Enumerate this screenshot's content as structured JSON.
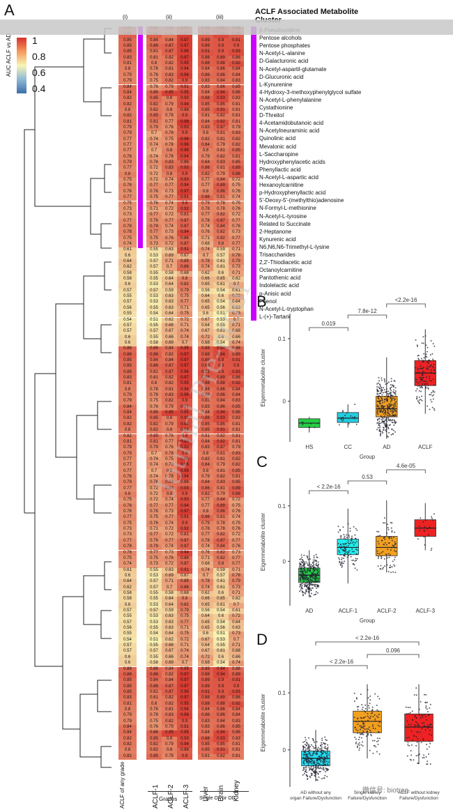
{
  "figure": {
    "panel_labels": [
      "A",
      "B",
      "C",
      "D"
    ],
    "heatmap": {
      "column_groups": [
        "(i)",
        "(ii)",
        "(iii)"
      ],
      "columns": [
        "ACLF of any grade",
        "ACLF-1",
        "ACLF-2",
        "ACLF-3",
        "Liver",
        "Brain",
        "Kidney"
      ],
      "group_labels": [
        "Grades",
        "Single OF or OD"
      ],
      "legend": {
        "title": "AUC ACLF vs AD",
        "ticks": [
          "1",
          "0.8",
          "0.6",
          "0.4"
        ],
        "colors": [
          "#d7302a",
          "#f8f5b5",
          "#3b6ea8"
        ]
      },
      "cluster_title": "ACLF Associated Metabolite Cluster",
      "cluster_color": "#cc00ff",
      "metabolites": [
        "β-Pseudouridine",
        "Pentose alcohols",
        "Pentose phosphates",
        "N-Acetyl-L-alanine",
        "D-Galacturonic acid",
        "N-Acetyl-aspartil-glutamate",
        "D-Glucuronic acid",
        "L-Kynurenine",
        "4-Hydroxy-3-methoxyphenylglycol sulfate",
        "N-Acetyl-L-phenylalanine",
        "Cystathionine",
        "D-Threitol",
        "4-Acetamidobutanoic acid",
        "N-Acetylneuraminic acid",
        "Quinolinic acid",
        "Mevalonic acid",
        "L-Saccharopine",
        "Hydroxyphenylacetic acids",
        "Phenyllactic acid",
        "N-Acetyl-L-aspartic acid",
        "Hexanoylcarnitine",
        "p-Hydroxyphenyllactic acid",
        "5'-Deoxy-5'-(methylthio)adenosine",
        "N-Formyl-L-methionine",
        "N-Acetyl-L-tyrosine",
        "Related to Succinate",
        "2-Heptanone",
        "Kynurenic acid",
        "N6,N6,N6-Trimethyl-L-lysine",
        "Trisaccharides",
        "2,2'-Thiodiacetic acid",
        "Octanoylcarnitine",
        "Pantothenic acid",
        "Indolelactic acid",
        "p-Anisic acid",
        "Phenol",
        "N-Acetyl-L-tryptophan",
        "L-(+)-Tartaric acid"
      ],
      "rows": [
        [
          0.86,
          0.86,
          0.84,
          0.95,
          0.89,
          0.94,
          0.86
        ],
        [
          0.88,
          0.88,
          0.82,
          0.97,
          0.88,
          0.94,
          0.89
        ],
        [
          0.85,
          0.84,
          0.84,
          0.97,
          0.89,
          0.9,
          0.91
        ],
        [
          0.85,
          0.86,
          0.87,
          0.97,
          0.89,
          0.9,
          0.9
        ],
        [
          0.85,
          0.81,
          0.87,
          0.96,
          0.91,
          0.9,
          0.93
        ],
        [
          0.83,
          0.81,
          0.82,
          0.97,
          0.88,
          0.89,
          0.86
        ],
        [
          0.81,
          0.8,
          0.82,
          0.95,
          0.88,
          0.88,
          0.92
        ],
        [
          0.8,
          0.78,
          0.81,
          0.94,
          0.84,
          0.86,
          0.84
        ],
        [
          0.79,
          0.78,
          0.83,
          0.96,
          0.86,
          0.86,
          0.84
        ],
        [
          0.79,
          0.75,
          0.82,
          0.9,
          0.83,
          0.84,
          0.83
        ],
        [
          0.84,
          0.76,
          0.79,
          0.91,
          0.83,
          0.86,
          0.85
        ],
        [
          0.84,
          0.86,
          0.95,
          0.95,
          0.84,
          0.94,
          0.86
        ],
        [
          0.82,
          0.85,
          0.8,
          0.93,
          0.88,
          0.93,
          0.83
        ],
        [
          0.82,
          0.82,
          0.79,
          0.94,
          0.85,
          0.85,
          0.81
        ],
        [
          0.8,
          0.82,
          0.8,
          0.88,
          0.85,
          0.91,
          0.81
        ],
        [
          0.82,
          0.85,
          0.78,
          0.9,
          0.81,
          0.82,
          0.81
        ],
        [
          0.81,
          0.81,
          0.77,
          0.98,
          0.84,
          0.92,
          0.81
        ],
        [
          0.79,
          0.79,
          0.76,
          0.93,
          0.83,
          0.87,
          0.79
        ],
        [
          0.79,
          0.7,
          0.78,
          0.9,
          0.8,
          0.81,
          0.83
        ],
        [
          0.77,
          0.74,
          0.75,
          0.96,
          0.82,
          0.81,
          0.82
        ],
        [
          0.77,
          0.74,
          0.78,
          0.96,
          0.84,
          0.79,
          0.82
        ],
        [
          0.77,
          0.7,
          0.8,
          0.96,
          0.8,
          0.81,
          0.85
        ],
        [
          0.78,
          0.74,
          0.78,
          0.94,
          0.79,
          0.82,
          0.81
        ],
        [
          0.79,
          0.76,
          0.83,
          0.86,
          0.84,
          0.83,
          0.85
        ],
        [
          0.77,
          0.72,
          0.83,
          0.93,
          0.86,
          0.81,
          0.89
        ],
        [
          0.8,
          0.72,
          0.8,
          0.9,
          0.82,
          0.79,
          0.88
        ],
        [
          0.75,
          0.72,
          0.74,
          0.93,
          0.77,
          0.84,
          0.72
        ],
        [
          0.78,
          0.77,
          0.77,
          0.94,
          0.77,
          0.89,
          0.75
        ],
        [
          0.76,
          0.76,
          0.73,
          0.97,
          0.8,
          0.86,
          0.76
        ],
        [
          0.77,
          0.75,
          0.77,
          0.91,
          0.86,
          0.81,
          0.74
        ],
        [
          0.75,
          0.76,
          0.74,
          0.9,
          0.79,
          0.78,
          0.75
        ],
        [
          0.73,
          0.71,
          0.72,
          0.92,
          0.78,
          0.78,
          0.76
        ],
        [
          0.73,
          0.77,
          0.72,
          0.81,
          0.77,
          0.82,
          0.72
        ],
        [
          0.77,
          0.76,
          0.77,
          0.87,
          0.78,
          0.87,
          0.77
        ],
        [
          0.78,
          0.79,
          0.74,
          0.87,
          0.74,
          0.84,
          0.76
        ],
        [
          0.78,
          0.77,
          0.73,
          0.94,
          0.76,
          0.82,
          0.73
        ],
        [
          0.75,
          0.75,
          0.76,
          0.86,
          0.71,
          0.82,
          0.77
        ],
        [
          0.74,
          0.73,
          0.72,
          0.87,
          0.68,
          0.8,
          0.77
        ]
      ],
      "lower_rows": [
        [
          0.61,
          0.55,
          0.63,
          0.91,
          0.74,
          0.59,
          0.71
        ],
        [
          0.6,
          0.53,
          0.69,
          0.67,
          0.7,
          0.57,
          0.78
        ],
        [
          0.64,
          0.57,
          0.71,
          0.85,
          0.78,
          0.61,
          0.79
        ],
        [
          0.62,
          0.57,
          0.7,
          0.86,
          0.74,
          0.61,
          0.73
        ],
        [
          0.58,
          0.55,
          0.58,
          0.68,
          0.62,
          0.6,
          0.71
        ],
        [
          0.58,
          0.55,
          0.64,
          0.8,
          0.66,
          0.65,
          0.62
        ],
        [
          0.6,
          0.53,
          0.64,
          0.82,
          0.65,
          0.61,
          0.7
        ],
        [
          0.57,
          0.57,
          0.59,
          0.79,
          0.56,
          0.54,
          0.61
        ],
        [
          0.55,
          0.53,
          0.63,
          0.75,
          0.64,
          0.6,
          0.72
        ],
        [
          0.57,
          0.53,
          0.63,
          0.77,
          0.65,
          0.54,
          0.64
        ],
        [
          0.56,
          0.55,
          0.63,
          0.71,
          0.65,
          0.56,
          0.63
        ],
        [
          0.55,
          0.54,
          0.64,
          0.75,
          0.6,
          0.51,
          0.73
        ],
        [
          0.54,
          0.51,
          0.62,
          0.72,
          0.67,
          0.53,
          0.7
        ],
        [
          0.57,
          0.55,
          0.68,
          0.71,
          0.64,
          0.55,
          0.71
        ],
        [
          0.57,
          0.57,
          0.67,
          0.74,
          0.67,
          0.61,
          0.68
        ],
        [
          0.6,
          0.55,
          0.66,
          0.74,
          0.72,
          0.6,
          0.66
        ],
        [
          0.6,
          0.58,
          0.69,
          0.7,
          0.68,
          0.54,
          0.74
        ]
      ]
    },
    "panel_b": {
      "chart_data": {
        "type": "box",
        "categories": [
          "HS",
          "CC",
          "AD",
          "ACLF"
        ],
        "medians": [
          -0.035,
          -0.027,
          -0.012,
          0.045
        ],
        "q1": [
          -0.042,
          -0.034,
          -0.025,
          0.025
        ],
        "q3": [
          -0.028,
          -0.018,
          0.008,
          0.065
        ],
        "whisker_low": [
          -0.05,
          -0.042,
          -0.06,
          -0.02
        ],
        "whisker_high": [
          -0.025,
          -0.005,
          0.07,
          0.115
        ],
        "colors": [
          "#22cc44",
          "#22ccdd",
          "#f2a020",
          "#ee2222"
        ],
        "ylabel": "Eigenmetabolite cluster",
        "xlabel": "Group",
        "yticks": [
          "0.1",
          "0"
        ],
        "ylim": [
          -0.065,
          0.14
        ],
        "pvalues": [
          {
            "label": "0.019"
          },
          {
            "label": "7.8e-12"
          },
          {
            "label": "<2.2e-16"
          }
        ]
      }
    },
    "panel_c": {
      "chart_data": {
        "type": "box",
        "categories": [
          "AD",
          "ACLF-1",
          "ACLF-2",
          "ACLF-3"
        ],
        "medians": [
          -0.025,
          0.025,
          0.025,
          0.06
        ],
        "q1": [
          -0.038,
          0.012,
          0.01,
          0.045
        ],
        "q3": [
          -0.012,
          0.04,
          0.045,
          0.075
        ],
        "whisker_low": [
          -0.065,
          -0.04,
          -0.02,
          0.02
        ],
        "whisker_high": [
          0.02,
          0.095,
          0.11,
          0.105
        ],
        "colors": [
          "#22cc44",
          "#22eeee",
          "#f2a020",
          "#ee2222"
        ],
        "ylabel": "Eigenmetabolite cluster",
        "xlabel": "Group",
        "yticks": [
          "0.1",
          "0"
        ],
        "ylim": [
          -0.08,
          0.15
        ],
        "pvalues": [
          {
            "label": "< 2.2e-16"
          },
          {
            "label": "0.53"
          },
          {
            "label": "4.6e-05"
          }
        ]
      }
    },
    "panel_d": {
      "chart_data": {
        "type": "box",
        "categories": [
          "AD without any organ Failure/Dysfunction",
          "Single kidney Failure/Dysfunction",
          "ACLF without kidney Failure/Dysfunction"
        ],
        "cat_lines": [
          [
            "AD without any",
            "organ Failure/Dysfunction"
          ],
          [
            "Single kidney",
            "Failure/Dysfunction"
          ],
          [
            "ACLF without kidney",
            "Failure/Dysfunction"
          ]
        ],
        "medians": [
          -0.015,
          0.05,
          0.04
        ],
        "q1": [
          -0.028,
          0.03,
          0.015
        ],
        "q3": [
          -0.002,
          0.068,
          0.063
        ],
        "whisker_low": [
          -0.055,
          -0.015,
          -0.025
        ],
        "whisker_high": [
          0.035,
          0.115,
          0.115
        ],
        "colors": [
          "#22ddee",
          "#f2a020",
          "#ee2222"
        ],
        "ylabel": "Eigenmetabolite cluster",
        "xlabel": "",
        "yticks": [
          "0.1",
          "0"
        ],
        "ylim": [
          -0.065,
          0.16
        ],
        "pvalues": [
          {
            "label": "< 2.2e-16"
          },
          {
            "label": "0.096"
          },
          {
            "label": "< 2.2e-16"
          }
        ]
      }
    },
    "watermark": {
      "text": "Journal Pre-proof",
      "wechat": "微信号: biotree"
    }
  }
}
